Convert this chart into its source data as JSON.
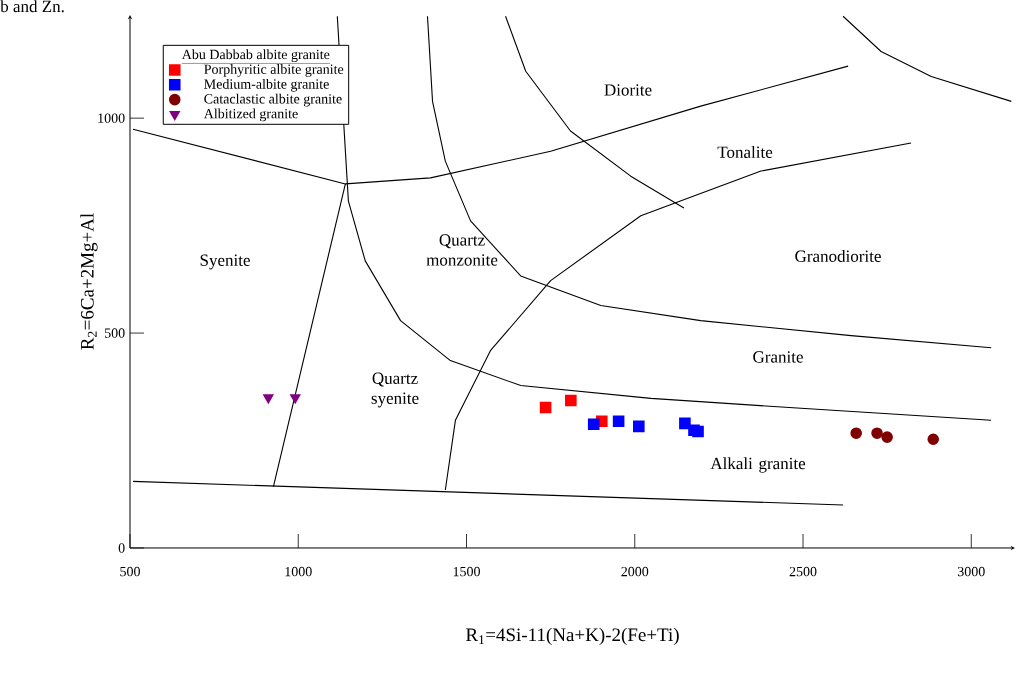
{
  "chart_data": {
    "type": "scatter",
    "xlabel": "R$_{1}$=4Si-11(Na+K)-2(Fe+Ti)",
    "ylabel": "R$_{2}$=6Ca+2Mg+Al",
    "legend_title": "Abu Dabbab albite granite",
    "legend": "top left",
    "xlim": [
      500,
      3130
    ],
    "ylim": [
      0,
      1240
    ],
    "xticks": [
      500,
      1000,
      1500,
      2000,
      2500,
      3000
    ],
    "yticks": [
      0,
      500,
      1000
    ],
    "series": [
      {
        "type": "line",
        "color": "#000000",
        "marker": "none",
        "x": [
          509,
          2619
        ],
        "values": [
          155,
          100
        ]
      },
      {
        "type": "line",
        "color": "#000000",
        "marker": "none",
        "x": [
          926,
          1140
        ],
        "values": [
          142,
          847
        ]
      },
      {
        "type": "line",
        "color": "#000000",
        "marker": "none",
        "x": [
          509,
          1140,
          1393,
          1750,
          2196,
          2634
        ],
        "values": [
          974,
          847,
          861,
          923,
          1028,
          1121
        ]
      },
      {
        "type": "line",
        "color": "#000000",
        "marker": "none",
        "x": [
          1116,
          1149,
          1199,
          1304,
          1452,
          1661,
          2048,
          2494,
          3059
        ],
        "values": [
          1237,
          807,
          668,
          529,
          436,
          378,
          348,
          325,
          297
        ]
      },
      {
        "type": "line",
        "color": "#000000",
        "marker": "none",
        "x": [
          1384,
          1399,
          1437,
          1512,
          1661,
          1899,
          2196,
          2643,
          3059
        ],
        "values": [
          1237,
          1039,
          900,
          761,
          633,
          564,
          529,
          494,
          466
        ]
      },
      {
        "type": "line",
        "color": "#000000",
        "marker": "none",
        "x": [
          1616,
          1676,
          1809,
          1988,
          2146
        ],
        "values": [
          1237,
          1109,
          970,
          865,
          791
        ]
      },
      {
        "type": "line",
        "color": "#000000",
        "marker": "none",
        "x": [
          2619,
          2732,
          2881,
          3119
        ],
        "values": [
          1237,
          1155,
          1097,
          1039
        ]
      },
      {
        "type": "line",
        "color": "#000000",
        "marker": "none",
        "x": [
          1437,
          1467,
          1571,
          1750,
          2018,
          2375,
          2821
        ],
        "values": [
          135,
          297,
          459,
          622,
          773,
          877,
          942
        ]
      },
      {
        "name": "Porphyritic albite granite",
        "color": "#ff0000",
        "marker": "square",
        "x": [
          1735,
          1810,
          1902
        ],
        "values": [
          327,
          343,
          295
        ]
      },
      {
        "name": "Medium-albite granite",
        "color": "#0000ff",
        "marker": "square",
        "x": [
          1878,
          1952,
          2012,
          2149,
          2176,
          2188
        ],
        "values": [
          288,
          295,
          283,
          290,
          274,
          271
        ]
      },
      {
        "name": "Cataclastic albite granite",
        "color": "#800000",
        "marker": "circle",
        "x": [
          2658,
          2720,
          2750,
          2887
        ],
        "values": [
          267,
          267,
          258,
          253
        ]
      },
      {
        "name": "Albitized granite",
        "color": "#800080",
        "marker": "triangle",
        "x": [
          911,
          991
        ],
        "values": [
          350,
          350
        ]
      }
    ],
    "annotations": [
      "b and Zn.",
      "Diorite",
      "Tonalite",
      "Syenite",
      "Quartz monzonite",
      "Granodiorite",
      "Granite",
      "Quartz syenite",
      "Alkali granite"
    ]
  }
}
